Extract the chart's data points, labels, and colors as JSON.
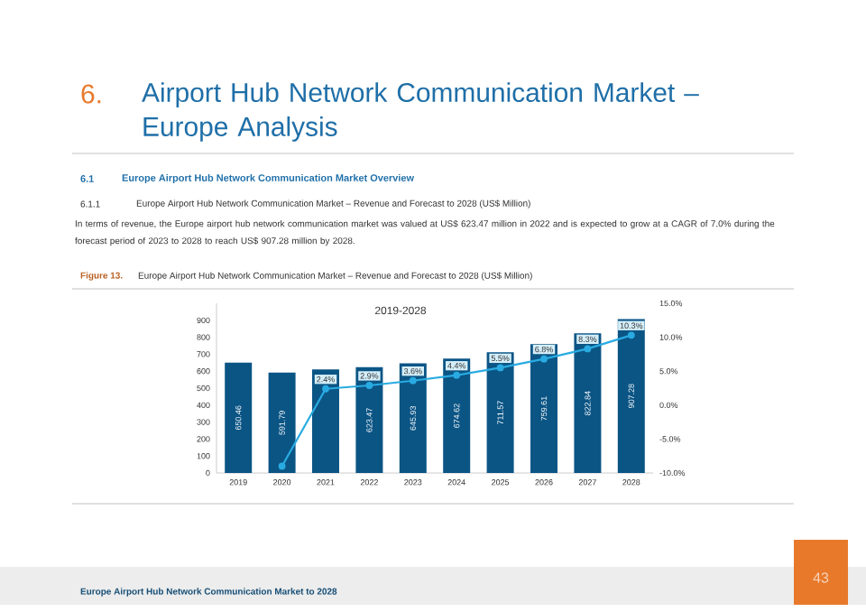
{
  "chart_data": {
    "type": "bar",
    "title": "Europe Airport Hub Network Communication Market – Revenue and Forecast to 2028 (US$ Million)",
    "subtitle": "2019-2028",
    "annotations": [
      "6.",
      "Airport Hub Network Communication Market – Europe Analysis",
      "6.1",
      "Europe Airport Hub Network Communication Market Overview",
      "6.1.1",
      "Europe Airport Hub Network Communication Market – Revenue and Forecast to 2028 (US$ Million)",
      "In terms of revenue, the Europe airport hub network communication market was valued at US$ 623.47 million in 2022 and is expected to grow at a CAGR of 7.0% during the forecast period of 2023 to 2028 to reach US$ 907.28 million by 2028.",
      "Figure 13.",
      "Europe Airport Hub Network Communication Market to 2028",
      "43"
    ],
    "categories": [
      "2019",
      "2020",
      "2021",
      "2022",
      "2023",
      "2024",
      "2025",
      "2026",
      "2027",
      "2028"
    ],
    "series": [
      {
        "color": "#0b5585",
        "values": [
          650.46,
          591.79,
          610,
          623.47,
          645.93,
          674.62,
          711.57,
          759.61,
          822.84,
          907.28
        ],
        "value_labels": [
          "650.46",
          "591.79",
          null,
          "623.47",
          "645.93",
          "674.62",
          "711.57",
          "759.61",
          "822.84",
          "907.28"
        ]
      },
      {
        "type": "line",
        "axis": "y2",
        "color": "#29abe2",
        "marker": "circle",
        "values": [
          null,
          -9.0,
          2.4,
          2.9,
          3.6,
          4.4,
          5.5,
          6.8,
          8.3,
          10.3
        ],
        "value_labels": [
          null,
          null,
          "2.4%",
          "2.9%",
          "3.6%",
          "4.4%",
          "5.5%",
          "6.8%",
          "8.3%",
          "10.3%"
        ]
      }
    ],
    "ylim": [
      0,
      1000
    ],
    "yticks": [
      0,
      100,
      200,
      300,
      400,
      500,
      600,
      700,
      800,
      900
    ],
    "y2lim": [
      -10,
      15
    ],
    "y2ticks": [
      {
        "value": -10,
        "label": "-10.0%"
      },
      {
        "value": -5,
        "label": "-5.0%"
      },
      {
        "value": 0,
        "label": "0.0%"
      },
      {
        "value": 5,
        "label": "5.0%"
      },
      {
        "value": 10,
        "label": "10.0%"
      },
      {
        "value": 15,
        "label": "15.0%"
      }
    ],
    "grid": false
  }
}
